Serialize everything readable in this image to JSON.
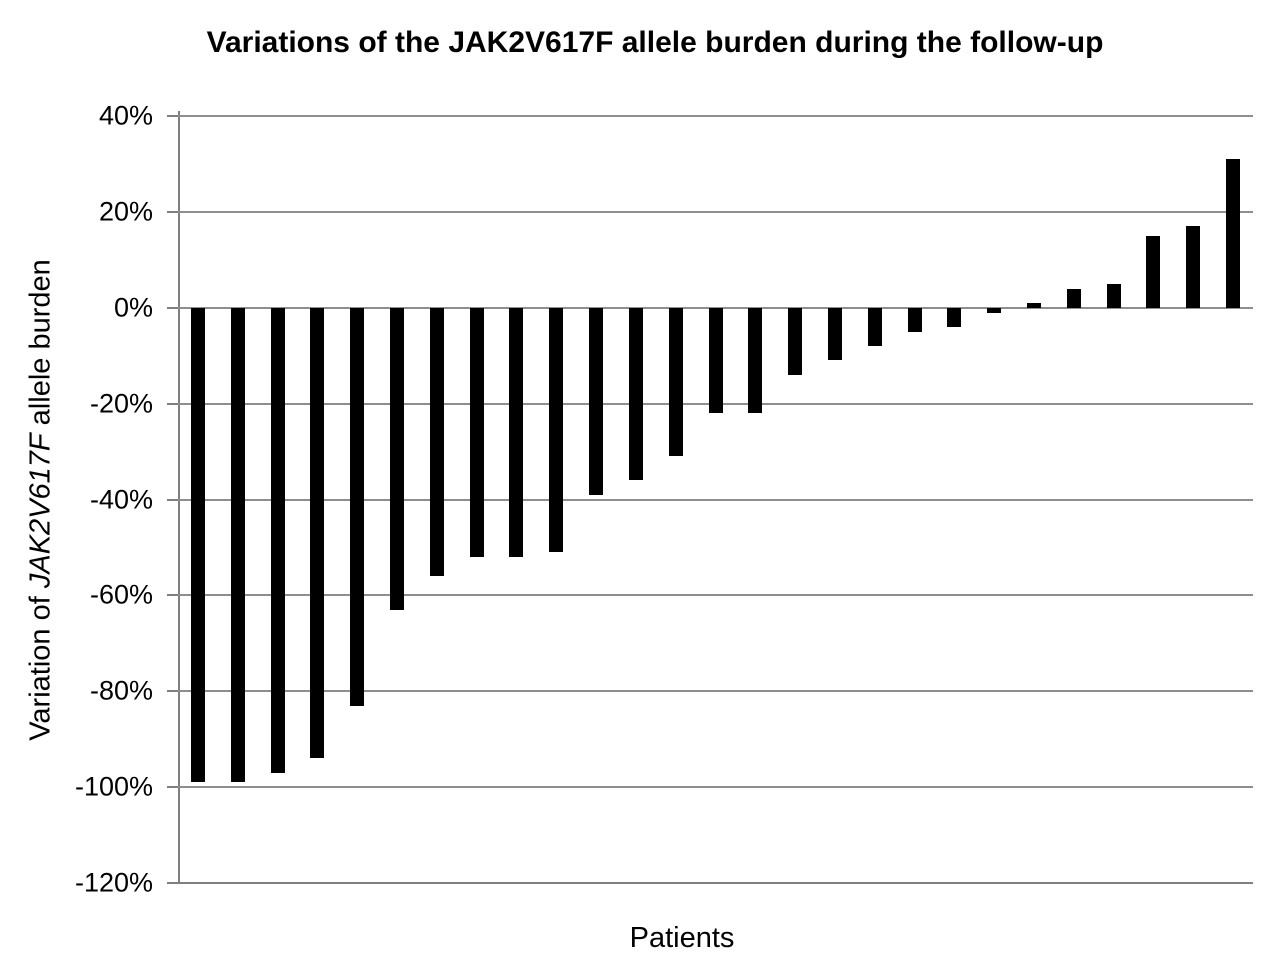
{
  "chart_data": {
    "type": "bar",
    "title": "Variations of the JAK2V617F allele burden during the follow-up",
    "xlabel": "Patients",
    "ylabel": "Variation of JAK2V617F allele burden",
    "ylabel_parts": [
      {
        "text": "Variation of ",
        "italic": false
      },
      {
        "text": "JAK2V617F",
        "italic": true
      },
      {
        "text": " allele burden",
        "italic": false
      }
    ],
    "values": [
      -99,
      -99,
      -97,
      -94,
      -83,
      -63,
      -56,
      -52,
      -52,
      -51,
      -39,
      -36,
      -31,
      -22,
      -22,
      -14,
      -11,
      -8,
      -5,
      -4,
      -1,
      1,
      4,
      5,
      15,
      17,
      31
    ],
    "unit": "%",
    "ylim": [
      -120,
      40
    ],
    "ytick_step": 20,
    "ytick_labels": [
      "40%",
      "20%",
      "0%",
      "-20%",
      "-40%",
      "-60%",
      "-80%",
      "-100%",
      "-120%"
    ],
    "x_tick_labels_visible": false,
    "grid": true,
    "legend_position": "none",
    "bar_color": "#000000",
    "gridline_color": "#8e8e8e",
    "axis_color": "#7f7f7f",
    "background_color": "#ffffff"
  }
}
